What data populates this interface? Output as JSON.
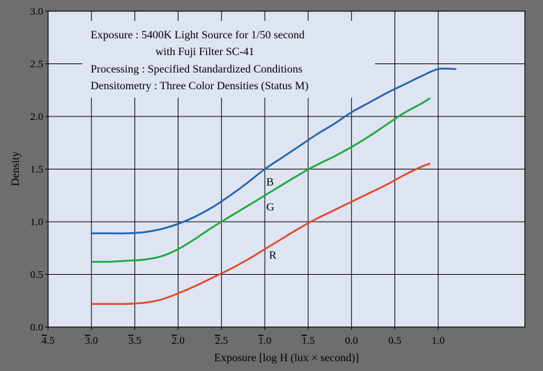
{
  "chart_data": {
    "type": "line",
    "title": "",
    "xlabel": "Exposure [log H (lux × second)]",
    "ylabel": "Density",
    "xlim": [
      -4.5,
      1.0
    ],
    "ylim": [
      0.0,
      3.0
    ],
    "grid": true,
    "x_ticks": [
      {
        "value": -4.5,
        "bar": "4",
        "rest": ".5"
      },
      {
        "value": -4.0,
        "bar": "3",
        "rest": ".0"
      },
      {
        "value": -3.5,
        "bar": "3",
        "rest": ".5"
      },
      {
        "value": -3.0,
        "bar": "2",
        "rest": ".0"
      },
      {
        "value": -2.5,
        "bar": "2",
        "rest": ".5"
      },
      {
        "value": -2.0,
        "bar": "1",
        "rest": ".0"
      },
      {
        "value": -1.5,
        "bar": "1",
        "rest": ".5"
      },
      {
        "value": -1.0,
        "bar": "",
        "rest": "0.0"
      },
      {
        "value": -0.5,
        "bar": "",
        "rest": "0.5"
      },
      {
        "value": 0.0,
        "bar": "",
        "rest": "1.0"
      }
    ],
    "y_ticks": [
      "0.0",
      "0.5",
      "1.0",
      "1.5",
      "2.0",
      "2.5",
      "3.0"
    ],
    "annotation_lines": [
      "Exposure : 5400K Light Source for 1/50 second",
      "with Fuji Filter SC-41",
      "Processing : Specified Standardized Conditions",
      "Densitometry : Three Color Densities (Status M)"
    ],
    "series": [
      {
        "name": "B",
        "color": "#1f66b3",
        "x": [
          -4.0,
          -3.8,
          -3.6,
          -3.4,
          -3.2,
          -3.0,
          -2.8,
          -2.6,
          -2.4,
          -2.2,
          -2.0,
          -1.8,
          -1.6,
          -1.4,
          -1.2,
          -1.0,
          -0.8,
          -0.6,
          -0.4,
          -0.2,
          0.0,
          0.2
        ],
        "y": [
          0.89,
          0.89,
          0.89,
          0.9,
          0.93,
          0.98,
          1.05,
          1.14,
          1.25,
          1.37,
          1.5,
          1.61,
          1.72,
          1.83,
          1.93,
          2.04,
          2.13,
          2.22,
          2.3,
          2.38,
          2.45,
          2.45
        ]
      },
      {
        "name": "G",
        "color": "#1aaa3c",
        "x": [
          -4.0,
          -3.8,
          -3.6,
          -3.4,
          -3.2,
          -3.0,
          -2.8,
          -2.6,
          -2.4,
          -2.2,
          -2.0,
          -1.8,
          -1.6,
          -1.4,
          -1.2,
          -1.0,
          -0.8,
          -0.6,
          -0.4,
          -0.2,
          -0.1
        ],
        "y": [
          0.62,
          0.62,
          0.63,
          0.64,
          0.67,
          0.74,
          0.84,
          0.95,
          1.05,
          1.15,
          1.25,
          1.35,
          1.45,
          1.54,
          1.62,
          1.71,
          1.81,
          1.92,
          2.03,
          2.12,
          2.17
        ]
      },
      {
        "name": "R",
        "color": "#e04a28",
        "x": [
          -4.0,
          -3.8,
          -3.6,
          -3.4,
          -3.2,
          -3.0,
          -2.8,
          -2.6,
          -2.4,
          -2.2,
          -2.0,
          -1.8,
          -1.6,
          -1.4,
          -1.2,
          -1.0,
          -0.8,
          -0.6,
          -0.4,
          -0.2,
          -0.1
        ],
        "y": [
          0.22,
          0.22,
          0.22,
          0.23,
          0.26,
          0.32,
          0.39,
          0.47,
          0.55,
          0.64,
          0.74,
          0.84,
          0.94,
          1.03,
          1.11,
          1.19,
          1.27,
          1.35,
          1.44,
          1.52,
          1.55
        ]
      }
    ]
  }
}
